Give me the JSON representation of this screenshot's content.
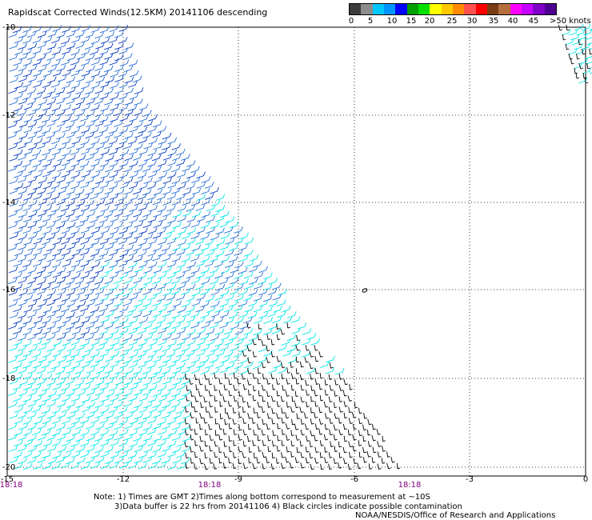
{
  "header": {
    "title": "Rapidscat Corrected Winds(12.5KM) 20141106 descending"
  },
  "legend": {
    "labels": [
      "0",
      "5",
      "10",
      "15",
      "20",
      "25",
      "30",
      "35",
      "40",
      "45"
    ],
    "units_label": ">50 knots",
    "colors": [
      "#3c3c3c",
      "#8c8c8c",
      "#00c8ff",
      "#0096ff",
      "#0000ff",
      "#00a000",
      "#00e000",
      "#ffff00",
      "#ffc800",
      "#ff8c00",
      "#ff5050",
      "#ff0000",
      "#7a3c14",
      "#b46e3c",
      "#ff00ff",
      "#c800ff",
      "#8000c8",
      "#500090"
    ]
  },
  "map": {
    "lat_labels": [
      "-10",
      "-12",
      "-14",
      "-16",
      "-18",
      "-20"
    ],
    "lon_labels": [
      "-15",
      "-12",
      "-9",
      "-6",
      "-3",
      "0"
    ],
    "time_labels": [
      "18:18",
      "18:18",
      "18:18"
    ],
    "time_label_color": "#800080",
    "barb_colors": {
      "light": "#00e6e6",
      "mid": "#2a6fd6",
      "dark": "#0a3cbe",
      "calm": "#000000"
    },
    "circle_marker_color": "#000000"
  },
  "notes": {
    "line1": "Note: 1) Times are GMT 2)Times along bottom correspond to measurement at ~10S",
    "line2": "3)Data buffer is 22 hrs from 20141106 4) Black circles indicate possible contamination",
    "credit": "NOAA/NESDIS/Office of Research and Applications"
  }
}
